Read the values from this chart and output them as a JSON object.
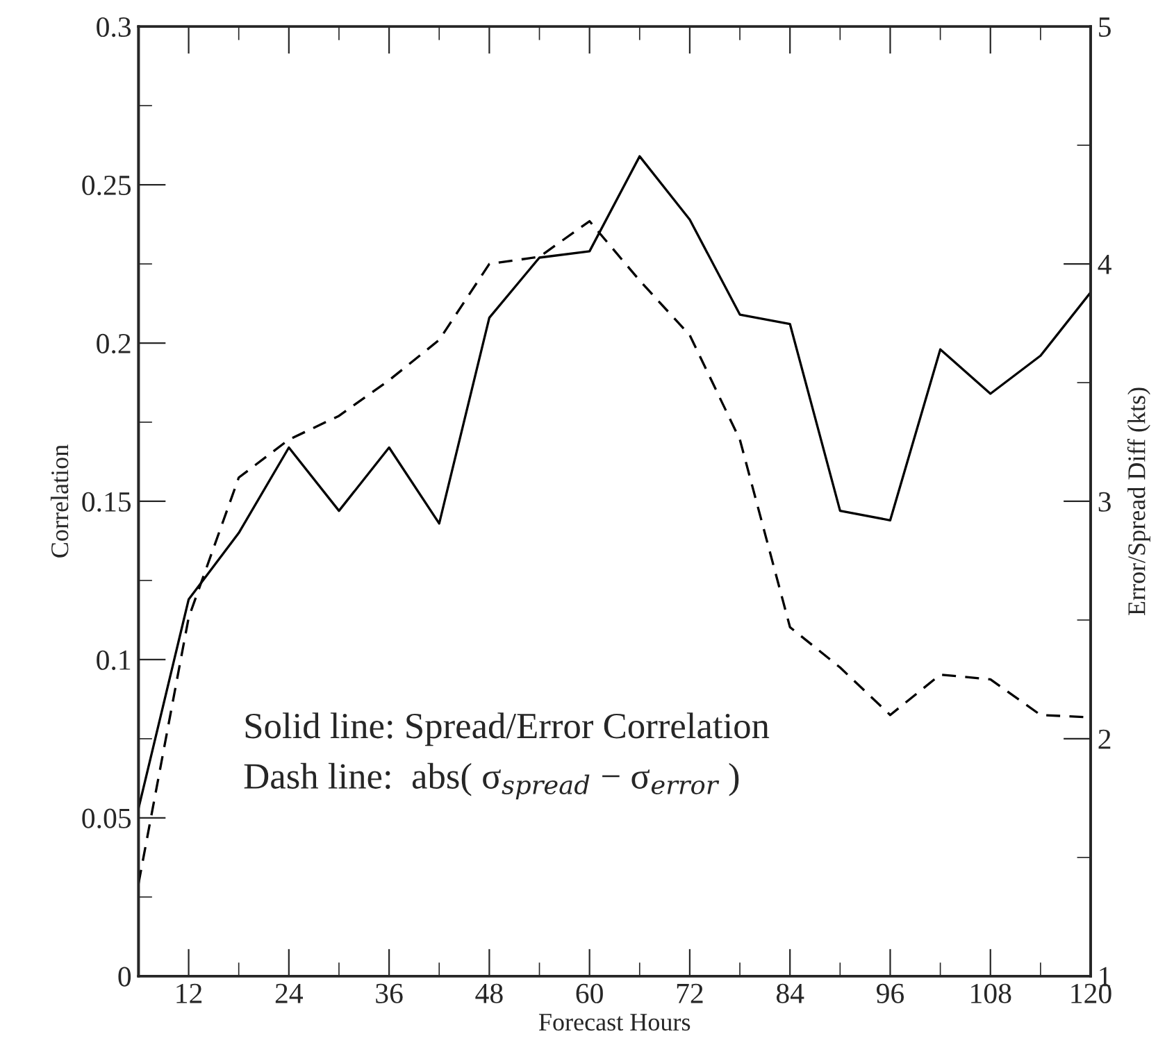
{
  "chart_data": {
    "type": "line",
    "xlabel": "Forecast Hours",
    "ylabel": "Correlation",
    "y2label": "Error/Spread Diff (kts)",
    "x": [
      6,
      12,
      18,
      24,
      30,
      36,
      42,
      48,
      54,
      60,
      66,
      72,
      78,
      84,
      90,
      96,
      102,
      108,
      114,
      120
    ],
    "series": [
      {
        "color": "#000000",
        "line_style": "solid",
        "values": [
          0.053,
          0.119,
          0.14,
          0.167,
          0.147,
          0.167,
          0.143,
          0.208,
          0.227,
          0.229,
          0.259,
          0.239,
          0.209,
          0.206,
          0.147,
          0.144,
          0.198,
          0.184,
          0.196,
          0.216
        ]
      },
      {
        "color": "#000000",
        "line_style": "dashed",
        "axis": "y2",
        "values": [
          1.39,
          2.51,
          3.1,
          3.26,
          3.36,
          3.51,
          3.68,
          4.0,
          4.03,
          4.18,
          3.93,
          3.7,
          3.26,
          2.47,
          2.3,
          2.1,
          2.27,
          2.25,
          2.1,
          2.09
        ]
      }
    ],
    "xlim": [
      6,
      120
    ],
    "ylim": [
      0,
      0.3
    ],
    "y2lim": [
      1,
      5
    ],
    "xticks": [
      12,
      {
        "value": 18,
        "label": null
      },
      24,
      {
        "value": 30,
        "label": null
      },
      36,
      {
        "value": 42,
        "label": null
      },
      48,
      {
        "value": 54,
        "label": null
      },
      60,
      {
        "value": 66,
        "label": null
      },
      72,
      {
        "value": 78,
        "label": null
      },
      84,
      {
        "value": 90,
        "label": null
      },
      96,
      {
        "value": 102,
        "label": null
      },
      108,
      {
        "value": 114,
        "label": null
      },
      120
    ],
    "yticks": [
      0,
      {
        "value": 0.025,
        "label": null
      },
      0.05,
      {
        "value": 0.075,
        "label": null
      },
      0.1,
      {
        "value": 0.125,
        "label": null
      },
      0.15,
      {
        "value": 0.175,
        "label": null
      },
      0.2,
      {
        "value": 0.225,
        "label": null
      },
      0.25,
      {
        "value": 0.275,
        "label": null
      },
      0.3
    ],
    "y2ticks": [
      1,
      {
        "value": 1.5,
        "label": null
      },
      2,
      {
        "value": 2.5,
        "label": null
      },
      3,
      {
        "value": 3.5,
        "label": null
      },
      4,
      {
        "value": 4.5,
        "label": null
      },
      5
    ],
    "annotations": [
      "Solid line: Spread/Error Correlation",
      "Dash line:  abs( σ$_{spread}$ − σ$_{error}$ )"
    ],
    "grid": false,
    "legend": false
  }
}
